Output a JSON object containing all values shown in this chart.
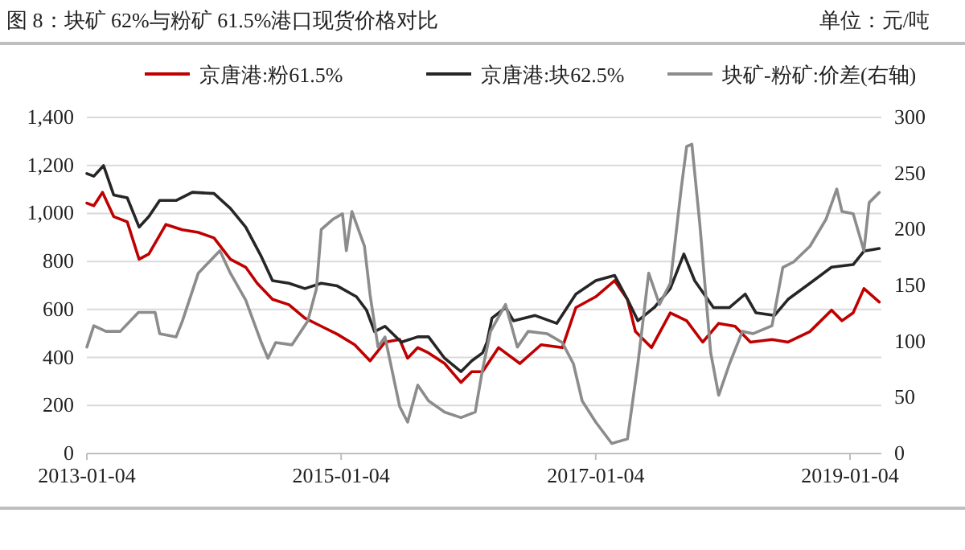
{
  "chart_data": {
    "type": "line",
    "title": "图 8：块矿 62%与粉矿 61.5%港口现货价格对比",
    "annotations": [
      "单位：元/吨"
    ],
    "xlim": [
      "2013-01-04",
      "2019-04-04"
    ],
    "xticks": [
      "2013-01-04",
      "2015-01-04",
      "2017-01-04",
      "2019-01-04"
    ],
    "ylim": [
      0,
      1400
    ],
    "yticks": [
      0,
      200,
      400,
      600,
      800,
      {
        "value": 1000,
        "label": "1,000"
      },
      {
        "value": 1200,
        "label": "1,200"
      },
      {
        "value": 1400,
        "label": "1,400"
      }
    ],
    "y2lim": [
      0,
      300
    ],
    "y2ticks": [
      0,
      50,
      100,
      150,
      200,
      250,
      300
    ],
    "grid": "y",
    "legend": "top",
    "marker": "none",
    "line_style": "solid",
    "series": [
      {
        "name": "京唐港:粉61.5%",
        "color": "#c00000",
        "x": [
          "2013-01-04",
          "2013-01-24",
          "2013-02-18",
          "2013-03-22",
          "2013-04-30",
          "2013-06-03",
          "2013-07-01",
          "2013-08-19",
          "2013-10-05",
          "2013-11-20",
          "2014-01-04",
          "2014-02-20",
          "2014-04-05",
          "2014-05-08",
          "2014-06-21",
          "2014-08-07",
          "2014-09-22",
          "2014-11-08",
          "2014-12-24",
          "2015-02-12",
          "2015-03-28",
          "2015-05-10",
          "2015-06-21",
          "2015-07-14",
          "2015-08-12",
          "2015-09-12",
          "2015-10-28",
          "2015-12-14",
          "2016-01-14",
          "2016-02-14",
          "2016-03-31",
          "2016-05-31",
          "2016-07-31",
          "2016-09-30",
          "2016-11-08",
          "2017-01-04",
          "2017-02-27",
          "2017-04-05",
          "2017-04-28",
          "2017-06-13",
          "2017-08-06",
          "2017-09-22",
          "2017-11-07",
          "2017-12-23",
          "2018-02-08",
          "2018-03-24",
          "2018-05-25",
          "2018-07-10",
          "2018-09-11",
          "2018-11-12",
          "2018-12-12",
          "2019-01-13",
          "2019-02-13",
          "2019-03-29"
        ],
        "values": [
          1043,
          1032,
          1088,
          987,
          965,
          809,
          831,
          954,
          932,
          921,
          898,
          809,
          776,
          709,
          642,
          620,
          564,
          530,
          497,
          453,
          386,
          464,
          475,
          397,
          441,
          419,
          375,
          296,
          341,
          341,
          441,
          375,
          453,
          441,
          608,
          653,
          720,
          642,
          508,
          441,
          586,
          553,
          464,
          542,
          530,
          464,
          475,
          464,
          508,
          597,
          553,
          586,
          687,
          631
        ]
      },
      {
        "name": "京唐港:块62.5%",
        "color": "#262626",
        "x": [
          "2013-01-04",
          "2013-01-24",
          "2013-02-21",
          "2013-03-22",
          "2013-04-30",
          "2013-06-03",
          "2013-07-01",
          "2013-08-01",
          "2013-09-17",
          "2013-11-03",
          "2014-01-04",
          "2014-02-20",
          "2014-04-05",
          "2014-05-20",
          "2014-06-21",
          "2014-08-07",
          "2014-09-22",
          "2014-11-08",
          "2014-12-24",
          "2015-02-17",
          "2015-03-18",
          "2015-04-10",
          "2015-05-10",
          "2015-06-26",
          "2015-08-12",
          "2015-09-12",
          "2015-10-28",
          "2015-12-14",
          "2016-01-14",
          "2016-02-14",
          "2016-02-27",
          "2016-03-12",
          "2016-04-20",
          "2016-05-13",
          "2016-07-14",
          "2016-09-14",
          "2016-11-08",
          "2017-01-04",
          "2017-02-27",
          "2017-04-05",
          "2017-05-05",
          "2017-06-21",
          "2017-08-06",
          "2017-09-14",
          "2017-10-15",
          "2017-12-08",
          "2018-01-23",
          "2018-03-09",
          "2018-04-09",
          "2018-06-01",
          "2018-07-10",
          "2018-09-11",
          "2018-11-12",
          "2019-01-13",
          "2019-02-13",
          "2019-03-29"
        ],
        "values": [
          1166,
          1155,
          1199,
          1077,
          1065,
          943,
          987,
          1054,
          1054,
          1088,
          1083,
          1021,
          943,
          820,
          720,
          709,
          687,
          709,
          698,
          653,
          597,
          508,
          530,
          464,
          486,
          486,
          397,
          341,
          386,
          419,
          464,
          564,
          608,
          553,
          575,
          542,
          664,
          720,
          742,
          642,
          553,
          608,
          687,
          831,
          720,
          608,
          608,
          664,
          586,
          575,
          642,
          709,
          776,
          787,
          843,
          854
        ]
      },
      {
        "name": "块矿-粉矿:价差(右轴)",
        "color": "#8c8c8c",
        "axis": "y2",
        "x": [
          "2013-01-04",
          "2013-01-24",
          "2013-02-28",
          "2013-04-10",
          "2013-06-01",
          "2013-07-19",
          "2013-08-01",
          "2013-09-17",
          "2013-10-05",
          "2013-11-20",
          "2013-12-21",
          "2014-01-21",
          "2014-02-20",
          "2014-04-05",
          "2014-05-20",
          "2014-06-08",
          "2014-06-30",
          "2014-08-16",
          "2014-09-30",
          "2014-10-25",
          "2014-11-08",
          "2014-12-11",
          "2015-01-08",
          "2015-01-19",
          "2015-02-04",
          "2015-03-12",
          "2015-03-28",
          "2015-04-20",
          "2015-05-10",
          "2015-06-21",
          "2015-07-14",
          "2015-08-12",
          "2015-09-12",
          "2015-10-28",
          "2015-12-14",
          "2016-01-24",
          "2016-02-14",
          "2016-03-08",
          "2016-04-20",
          "2016-05-24",
          "2016-06-24",
          "2016-08-17",
          "2016-09-30",
          "2016-11-01",
          "2016-11-26",
          "2017-01-04",
          "2017-02-19",
          "2017-04-05",
          "2017-05-05",
          "2017-06-05",
          "2017-07-06",
          "2017-08-06",
          "2017-09-07",
          "2017-09-22",
          "2017-10-07",
          "2017-10-30",
          "2017-11-30",
          "2017-12-23",
          "2018-01-23",
          "2018-03-01",
          "2018-04-01",
          "2018-05-25",
          "2018-06-25",
          "2018-07-26",
          "2018-09-11",
          "2018-10-27",
          "2018-11-27",
          "2018-12-12",
          "2019-01-13",
          "2019-02-13",
          "2019-02-28",
          "2019-03-29"
        ],
        "values": [
          95,
          114,
          109,
          109,
          126,
          126,
          107,
          104,
          118,
          161,
          171,
          181,
          161,
          137,
          99,
          85,
          99,
          97,
          118,
          147,
          200,
          209,
          214,
          181,
          216,
          185,
          142,
          95,
          104,
          42,
          28,
          61,
          47,
          37,
          32,
          37,
          75,
          109,
          133,
          95,
          109,
          107,
          99,
          80,
          47,
          28,
          9,
          13,
          80,
          161,
          133,
          152,
          238,
          274,
          276,
          204,
          90,
          52,
          80,
          109,
          107,
          114,
          166,
          171,
          185,
          209,
          236,
          216,
          214,
          181,
          224,
          233
        ]
      }
    ]
  }
}
